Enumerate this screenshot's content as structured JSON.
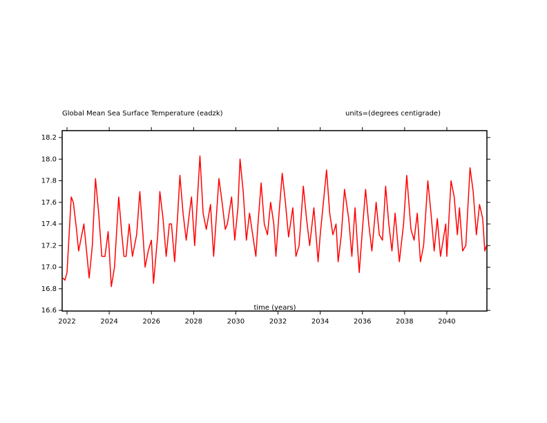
{
  "chart_data": {
    "type": "line",
    "title": "Global Mean Sea Surface Temperature (eadzk)",
    "units": "units=(degrees centigrade)",
    "x_label": "time (years)",
    "xlim": [
      2021.77,
      2041.9
    ],
    "xticks": [
      2022,
      2024,
      2026,
      2028,
      2030,
      2032,
      2034,
      2036,
      2038,
      2040
    ],
    "ylim": [
      16.594,
      18.264
    ],
    "yticks": [
      16.6,
      16.8,
      {
        "value": 17,
        "label": "17.0"
      },
      17.2,
      17.4,
      17.6,
      17.8,
      {
        "value": 18,
        "label": "18.0"
      },
      18.2
    ],
    "series": [
      {
        "color": "#ff0000",
        "x": [
          2021.8,
          2021.9,
          2022.0,
          2022.1,
          2022.2,
          2022.3,
          2022.45,
          2022.55,
          2022.65,
          2022.8,
          2022.9,
          2023.05,
          2023.2,
          2023.35,
          2023.5,
          2023.65,
          2023.8,
          2023.95,
          2024.1,
          2024.25,
          2024.45,
          2024.6,
          2024.7,
          2024.8,
          2024.95,
          2025.1,
          2025.3,
          2025.45,
          2025.6,
          2025.7,
          2025.85,
          2026.0,
          2026.1,
          2026.3,
          2026.4,
          2026.55,
          2026.7,
          2026.85,
          2026.95,
          2027.1,
          2027.25,
          2027.35,
          2027.5,
          2027.65,
          2027.8,
          2027.9,
          2028.05,
          2028.2,
          2028.3,
          2028.45,
          2028.6,
          2028.8,
          2028.95,
          2029.2,
          2029.35,
          2029.5,
          2029.6,
          2029.8,
          2029.95,
          2030.1,
          2030.2,
          2030.35,
          2030.5,
          2030.65,
          2030.8,
          2030.95,
          2031.05,
          2031.2,
          2031.35,
          2031.5,
          2031.65,
          2031.8,
          2031.9,
          2032.05,
          2032.2,
          2032.35,
          2032.5,
          2032.7,
          2032.85,
          2033.0,
          2033.2,
          2033.35,
          2033.5,
          2033.7,
          2033.9,
          2034.0,
          2034.15,
          2034.3,
          2034.45,
          2034.6,
          2034.75,
          2034.85,
          2035.0,
          2035.15,
          2035.35,
          2035.5,
          2035.65,
          2035.85,
          2036.0,
          2036.15,
          2036.3,
          2036.45,
          2036.65,
          2036.8,
          2036.95,
          2037.1,
          2037.25,
          2037.4,
          2037.55,
          2037.75,
          2037.95,
          2038.1,
          2038.3,
          2038.45,
          2038.6,
          2038.75,
          2038.9,
          2039.1,
          2039.25,
          2039.4,
          2039.55,
          2039.7,
          2039.95,
          2040.0,
          2040.2,
          2040.35,
          2040.5,
          2040.6,
          2040.75,
          2040.9,
          2041.1,
          2041.25,
          2041.4,
          2041.55,
          2041.7,
          2041.8,
          2041.88
        ],
        "values": [
          16.9,
          16.88,
          16.95,
          17.3,
          17.65,
          17.6,
          17.35,
          17.15,
          17.25,
          17.4,
          17.2,
          16.9,
          17.2,
          17.82,
          17.5,
          17.1,
          17.1,
          17.33,
          16.82,
          17.0,
          17.65,
          17.3,
          17.1,
          17.1,
          17.4,
          17.1,
          17.3,
          17.7,
          17.3,
          17.0,
          17.15,
          17.25,
          16.85,
          17.3,
          17.7,
          17.45,
          17.1,
          17.4,
          17.4,
          17.05,
          17.5,
          17.85,
          17.5,
          17.25,
          17.5,
          17.65,
          17.2,
          17.7,
          18.03,
          17.5,
          17.35,
          17.58,
          17.1,
          17.82,
          17.6,
          17.35,
          17.4,
          17.65,
          17.25,
          17.55,
          18.0,
          17.7,
          17.25,
          17.5,
          17.3,
          17.1,
          17.4,
          17.78,
          17.4,
          17.3,
          17.6,
          17.4,
          17.1,
          17.5,
          17.87,
          17.6,
          17.28,
          17.55,
          17.1,
          17.2,
          17.75,
          17.45,
          17.2,
          17.55,
          17.05,
          17.3,
          17.6,
          17.9,
          17.5,
          17.3,
          17.4,
          17.05,
          17.3,
          17.72,
          17.45,
          17.1,
          17.55,
          16.95,
          17.35,
          17.72,
          17.4,
          17.15,
          17.6,
          17.3,
          17.25,
          17.75,
          17.4,
          17.15,
          17.5,
          17.05,
          17.4,
          17.85,
          17.35,
          17.25,
          17.5,
          17.05,
          17.2,
          17.8,
          17.5,
          17.15,
          17.45,
          17.1,
          17.4,
          17.1,
          17.8,
          17.65,
          17.3,
          17.55,
          17.15,
          17.2,
          17.92,
          17.7,
          17.3,
          17.58,
          17.45,
          17.15,
          17.2
        ]
      }
    ]
  }
}
